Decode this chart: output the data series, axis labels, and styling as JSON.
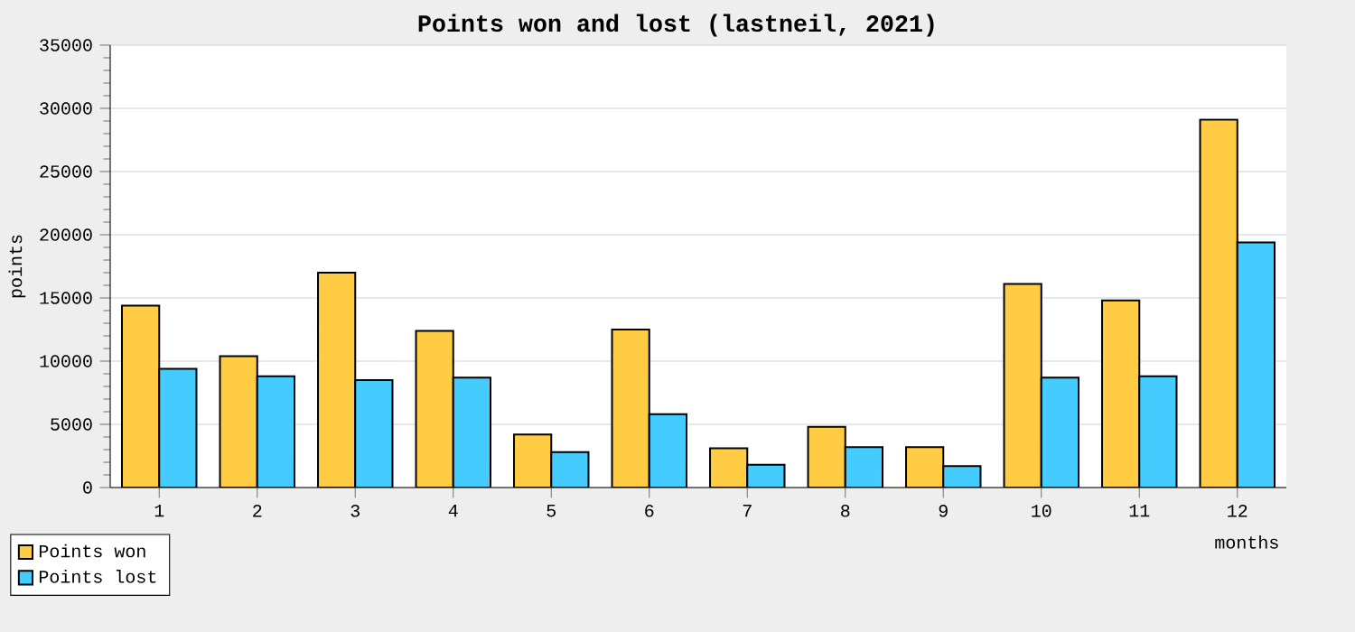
{
  "chart_data": {
    "type": "bar",
    "title": "Points won and lost (lastneil, 2021)",
    "xlabel": "months",
    "ylabel": "points",
    "categories": [
      "1",
      "2",
      "3",
      "4",
      "5",
      "6",
      "7",
      "8",
      "9",
      "10",
      "11",
      "12"
    ],
    "series": [
      {
        "name": "Points won",
        "color": "#ffcc44",
        "values": [
          14400,
          10400,
          17000,
          12400,
          4200,
          12500,
          3100,
          4800,
          3200,
          16100,
          14800,
          29100
        ]
      },
      {
        "name": "Points lost",
        "color": "#44ccff",
        "values": [
          9400,
          8800,
          8500,
          8700,
          2800,
          5800,
          1800,
          3200,
          1700,
          8700,
          8800,
          19400
        ]
      }
    ],
    "ylim": [
      0,
      35000
    ],
    "yticks": [
      0,
      5000,
      10000,
      15000,
      20000,
      25000,
      30000,
      35000
    ],
    "grid": "y",
    "legend": "bottom left"
  }
}
